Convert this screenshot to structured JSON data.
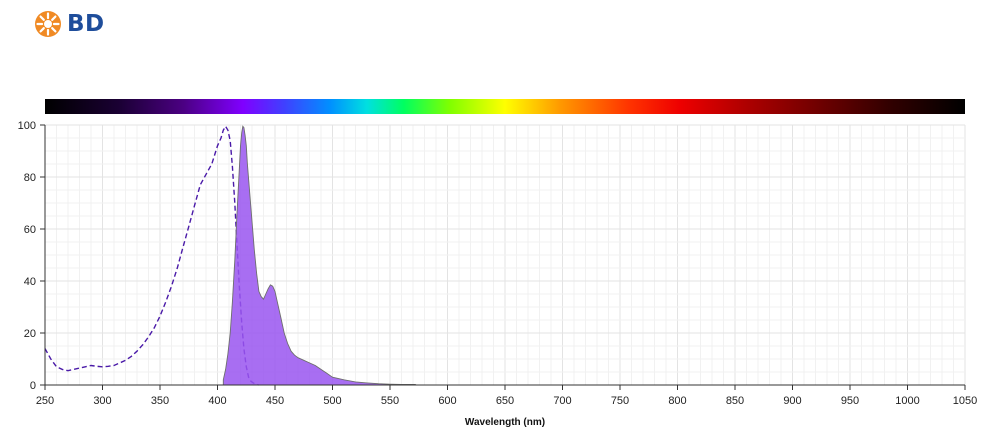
{
  "brand": {
    "name": "BD",
    "logo_icon": "bd-starburst-icon",
    "logo_color": "#f08a24",
    "text_color": "#1e4d9b"
  },
  "chart_data": {
    "type": "area",
    "title": "",
    "xlabel": "Wavelength (nm)",
    "ylabel": "",
    "xlim": [
      250,
      1050
    ],
    "ylim": [
      0,
      100
    ],
    "x_ticks": [
      250,
      300,
      350,
      400,
      450,
      500,
      550,
      600,
      650,
      700,
      750,
      800,
      850,
      900,
      950,
      1000,
      1050
    ],
    "y_ticks": [
      0,
      20,
      40,
      60,
      80,
      100
    ],
    "grid": true,
    "legend": "none",
    "spectrum_bar": true,
    "series": [
      {
        "role": "excitation",
        "style": "dashed-line",
        "color": "#4a1aa8",
        "x": [
          250,
          255,
          260,
          265,
          270,
          275,
          280,
          285,
          290,
          295,
          300,
          305,
          310,
          315,
          320,
          325,
          330,
          335,
          340,
          345,
          350,
          355,
          360,
          365,
          370,
          375,
          380,
          385,
          390,
          395,
          400,
          403,
          405,
          407,
          409,
          411,
          413,
          415,
          417,
          419,
          421,
          423,
          425,
          427,
          429,
          431,
          433,
          436
        ],
        "y": [
          14,
          10,
          7,
          6,
          5.5,
          6,
          6.5,
          7,
          7.5,
          7.2,
          7,
          7.2,
          7.5,
          8.5,
          9.5,
          11,
          13,
          15.5,
          18.5,
          22,
          26.5,
          32,
          38,
          45,
          53,
          61,
          69,
          77,
          81,
          85,
          92,
          95,
          98,
          99.5,
          98,
          94,
          84,
          70,
          54,
          38,
          24,
          14,
          7,
          3,
          1.5,
          0.8,
          0.3,
          0
        ]
      },
      {
        "role": "emission",
        "style": "filled-area",
        "color": "#9955f0",
        "x": [
          405,
          407,
          409,
          411,
          413,
          415,
          417,
          419,
          420,
          421,
          422,
          423,
          424,
          425,
          426,
          428,
          430,
          432,
          434,
          436,
          438,
          440,
          442,
          444,
          446,
          448,
          450,
          452,
          455,
          458,
          461,
          464,
          467,
          470,
          475,
          480,
          485,
          490,
          495,
          500,
          510,
          520,
          530,
          540,
          550,
          560,
          572,
          573
        ],
        "y": [
          2,
          6,
          12,
          20,
          32,
          48,
          66,
          83,
          92,
          97,
          99.5,
          99,
          96,
          92,
          85,
          74,
          63,
          52,
          43,
          36,
          34,
          33,
          35,
          37,
          38.5,
          38,
          36,
          32,
          26,
          20,
          16,
          13,
          11.5,
          10.5,
          9.5,
          8.5,
          7.5,
          6,
          4.5,
          3,
          2,
          1.2,
          0.8,
          0.5,
          0.3,
          0.2,
          0.2,
          0
        ]
      }
    ]
  }
}
